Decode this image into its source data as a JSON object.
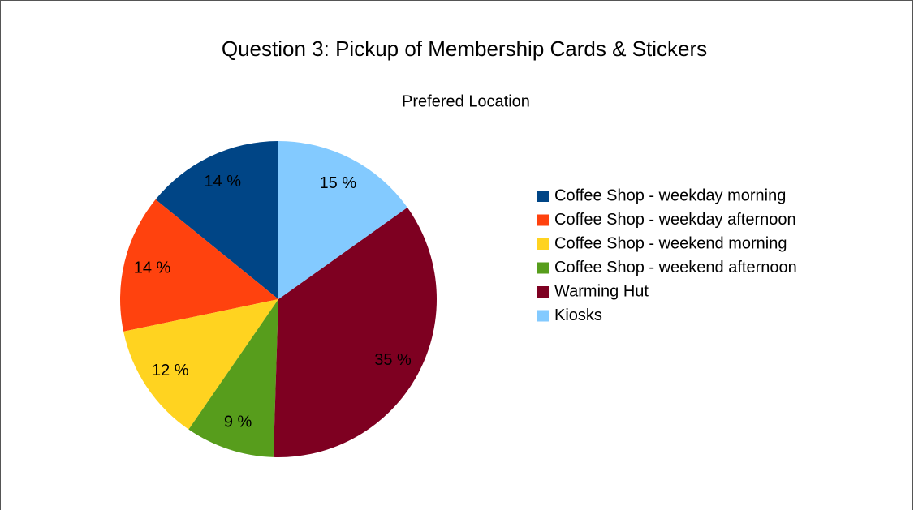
{
  "chart_data": {
    "type": "pie",
    "title": "Question 3: Pickup of Membership Cards & Stickers",
    "subtitle": "Prefered Location",
    "categories": [
      "Coffee Shop - weekday morning",
      "Coffee Shop - weekday afternoon",
      "Coffee Shop - weekend morning",
      "Coffee Shop - weekend afternoon",
      "Warming Hut",
      "Kiosks"
    ],
    "values": [
      14,
      14,
      12,
      9,
      35,
      15
    ],
    "value_labels": [
      "14 %",
      "14 %",
      "12 %",
      "9 %",
      "35 %",
      "15 %"
    ],
    "colors": [
      "#004586",
      "#ff420e",
      "#ffd320",
      "#579d1c",
      "#7e0021",
      "#83caff"
    ],
    "legend": "right"
  }
}
